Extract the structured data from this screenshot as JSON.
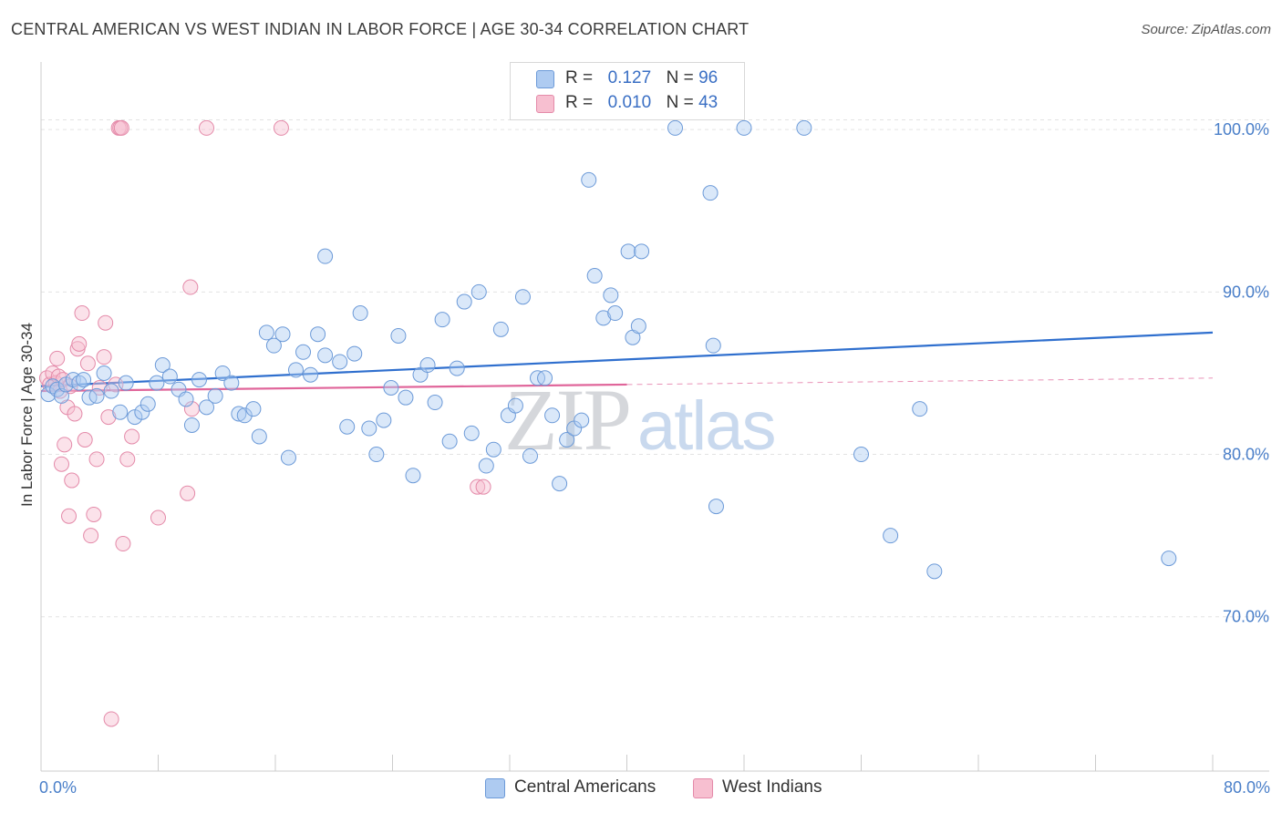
{
  "header": {
    "title": "CENTRAL AMERICAN VS WEST INDIAN IN LABOR FORCE | AGE 30-34 CORRELATION CHART",
    "source": "Source: ZipAtlas.com"
  },
  "watermark": {
    "zip": "ZIP",
    "atlas": "atlas"
  },
  "legend_top": {
    "rows": [
      {
        "r_label": "R =",
        "r_value": "0.127",
        "n_label": "N =",
        "n_value": "96"
      },
      {
        "r_label": "R =",
        "r_value": "0.010",
        "n_label": "N =",
        "n_value": "43"
      }
    ]
  },
  "legend_bottom": {
    "items": [
      "Central Americans",
      "West Indians"
    ]
  },
  "colors": {
    "blue_fill": "#aecbf1",
    "blue_stroke": "#6c9ad8",
    "blue_line": "#2f6fce",
    "pink_fill": "#f7bfd0",
    "pink_stroke": "#e48aa9",
    "pink_line": "#e0659a",
    "axis_text": "#4a7fc9",
    "grid": "#e3e3e3"
  },
  "chart_data": {
    "type": "scatter",
    "title": "CENTRAL AMERICAN VS WEST INDIAN IN LABOR FORCE | AGE 30-34 CORRELATION CHART",
    "xlabel": "",
    "ylabel": "In Labor Force | Age 30-34",
    "xlim": [
      0,
      80
    ],
    "ylim": [
      60.5,
      104.5
    ],
    "x_tick_labels": [
      "0.0%",
      "80.0%"
    ],
    "y_ticks": [
      70,
      80,
      90,
      100
    ],
    "y_tick_labels": [
      "70.0%",
      "80.0%",
      "90.0%",
      "100.0%"
    ],
    "grid": true,
    "legend_position": "top-center",
    "series": [
      {
        "name": "Central Americans",
        "r": 0.127,
        "n": 96,
        "trend": {
          "x": [
            0,
            80
          ],
          "y": [
            84.2,
            87.5
          ]
        },
        "points": [
          [
            0.5,
            83.7
          ],
          [
            0.8,
            84.2
          ],
          [
            1.1,
            84.0
          ],
          [
            1.4,
            83.6
          ],
          [
            1.7,
            84.3
          ],
          [
            2.2,
            84.6
          ],
          [
            2.6,
            84.4
          ],
          [
            3.3,
            83.5
          ],
          [
            3.8,
            83.6
          ],
          [
            4.3,
            85.0
          ],
          [
            4.8,
            83.9
          ],
          [
            5.4,
            82.6
          ],
          [
            5.8,
            84.4
          ],
          [
            6.4,
            82.3
          ],
          [
            6.9,
            82.6
          ],
          [
            7.3,
            83.1
          ],
          [
            7.9,
            84.4
          ],
          [
            8.3,
            85.5
          ],
          [
            8.8,
            84.8
          ],
          [
            9.4,
            84.0
          ],
          [
            9.9,
            83.4
          ],
          [
            10.3,
            81.8
          ],
          [
            10.8,
            84.6
          ],
          [
            11.3,
            82.9
          ],
          [
            11.9,
            83.6
          ],
          [
            12.4,
            85.0
          ],
          [
            13.0,
            84.4
          ],
          [
            13.5,
            82.5
          ],
          [
            13.9,
            82.4
          ],
          [
            14.5,
            82.8
          ],
          [
            14.9,
            81.1
          ],
          [
            15.4,
            87.5
          ],
          [
            15.9,
            86.7
          ],
          [
            16.5,
            87.4
          ],
          [
            16.9,
            79.8
          ],
          [
            17.4,
            85.2
          ],
          [
            17.9,
            86.3
          ],
          [
            18.4,
            84.9
          ],
          [
            18.9,
            87.4
          ],
          [
            19.4,
            86.1
          ],
          [
            19.4,
            92.2
          ],
          [
            20.4,
            85.7
          ],
          [
            20.9,
            81.7
          ],
          [
            21.4,
            86.2
          ],
          [
            21.8,
            88.7
          ],
          [
            22.4,
            81.6
          ],
          [
            22.9,
            80.0
          ],
          [
            23.4,
            82.1
          ],
          [
            23.9,
            84.1
          ],
          [
            24.4,
            87.3
          ],
          [
            24.9,
            83.5
          ],
          [
            25.4,
            78.7
          ],
          [
            25.9,
            84.9
          ],
          [
            26.4,
            85.5
          ],
          [
            26.9,
            83.2
          ],
          [
            27.4,
            88.3
          ],
          [
            27.9,
            80.8
          ],
          [
            28.4,
            85.3
          ],
          [
            28.9,
            89.4
          ],
          [
            29.4,
            81.3
          ],
          [
            29.9,
            90.0
          ],
          [
            30.4,
            79.3
          ],
          [
            30.9,
            80.3
          ],
          [
            31.4,
            87.7
          ],
          [
            31.9,
            82.4
          ],
          [
            32.4,
            83.0
          ],
          [
            32.9,
            89.7
          ],
          [
            33.4,
            79.9
          ],
          [
            33.9,
            84.7
          ],
          [
            34.4,
            84.7
          ],
          [
            34.9,
            82.4
          ],
          [
            35.4,
            78.2
          ],
          [
            35.9,
            80.9
          ],
          [
            36.4,
            81.6
          ],
          [
            36.9,
            82.1
          ],
          [
            37.4,
            96.9
          ],
          [
            37.8,
            91.0
          ],
          [
            38.4,
            88.4
          ],
          [
            38.9,
            89.8
          ],
          [
            39.2,
            88.7
          ],
          [
            40.1,
            92.5
          ],
          [
            40.4,
            87.2
          ],
          [
            40.8,
            87.9
          ],
          [
            41.0,
            92.5
          ],
          [
            43.3,
            100.1
          ],
          [
            45.7,
            96.1
          ],
          [
            45.9,
            86.7
          ],
          [
            46.1,
            76.8
          ],
          [
            48.0,
            100.1
          ],
          [
            52.1,
            100.1
          ],
          [
            56.0,
            80.0
          ],
          [
            58.0,
            75.0
          ],
          [
            60.0,
            82.8
          ],
          [
            61.0,
            72.8
          ],
          [
            77.0,
            73.6
          ],
          [
            2.9,
            84.6
          ]
        ]
      },
      {
        "name": "West Indians",
        "r": 0.01,
        "n": 43,
        "trend": {
          "x": [
            0,
            40
          ],
          "y": [
            83.9,
            84.3
          ]
        },
        "trend_dashed": {
          "x": [
            40,
            80
          ],
          "y": [
            84.3,
            84.7
          ]
        },
        "points": [
          [
            0.4,
            84.7
          ],
          [
            0.6,
            84.3
          ],
          [
            0.8,
            85.0
          ],
          [
            1.0,
            84.4
          ],
          [
            1.2,
            84.8
          ],
          [
            1.3,
            83.9
          ],
          [
            1.5,
            84.6
          ],
          [
            1.1,
            85.9
          ],
          [
            1.4,
            79.4
          ],
          [
            1.6,
            80.6
          ],
          [
            1.8,
            82.9
          ],
          [
            1.9,
            76.2
          ],
          [
            2.1,
            78.4
          ],
          [
            2.3,
            82.5
          ],
          [
            2.5,
            86.5
          ],
          [
            2.6,
            86.8
          ],
          [
            2.8,
            88.7
          ],
          [
            3.0,
            80.9
          ],
          [
            3.2,
            85.6
          ],
          [
            3.4,
            75.0
          ],
          [
            3.6,
            76.3
          ],
          [
            3.8,
            79.7
          ],
          [
            4.0,
            84.1
          ],
          [
            4.3,
            86.0
          ],
          [
            4.4,
            88.1
          ],
          [
            4.6,
            82.3
          ],
          [
            4.8,
            63.7
          ],
          [
            5.1,
            84.3
          ],
          [
            5.3,
            100.1
          ],
          [
            5.4,
            100.1
          ],
          [
            5.5,
            100.1
          ],
          [
            5.6,
            74.5
          ],
          [
            5.9,
            79.7
          ],
          [
            6.2,
            81.1
          ],
          [
            8.0,
            76.1
          ],
          [
            10.0,
            77.6
          ],
          [
            10.2,
            90.3
          ],
          [
            10.3,
            82.8
          ],
          [
            11.3,
            100.1
          ],
          [
            16.4,
            100.1
          ],
          [
            29.8,
            78.0
          ],
          [
            30.2,
            78.0
          ],
          [
            2.0,
            84.2
          ]
        ]
      }
    ]
  }
}
